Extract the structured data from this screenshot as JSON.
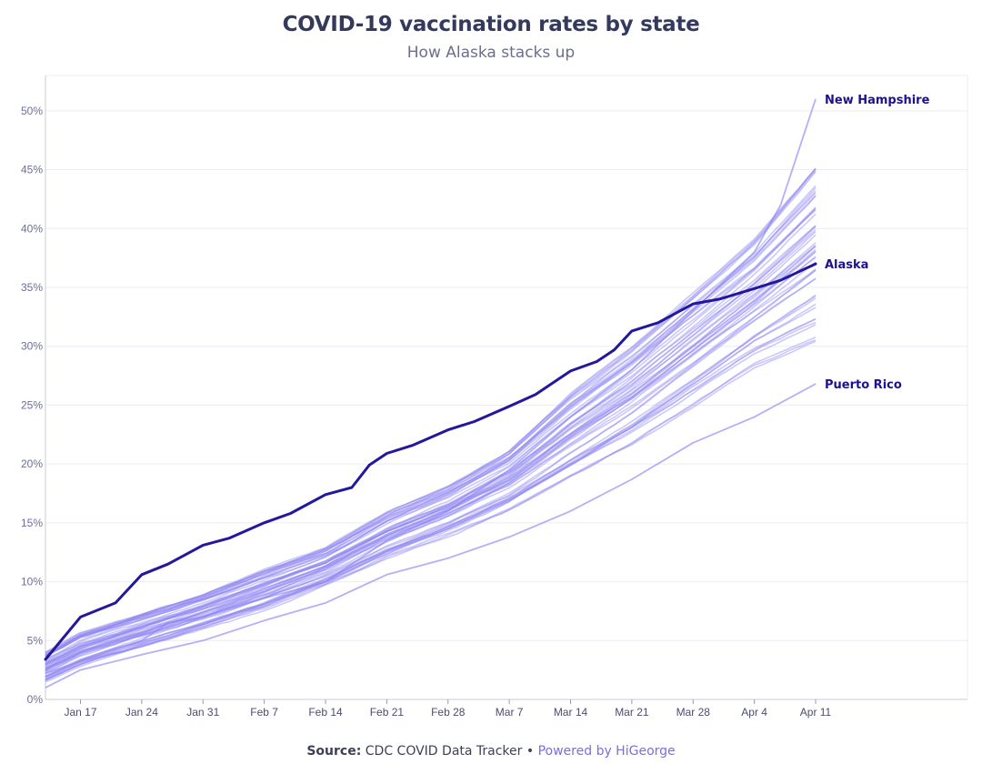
{
  "header": {
    "title": "COVID-19 vaccination rates by state",
    "subtitle": "How Alaska stacks up"
  },
  "footer": {
    "source_label": "Source:",
    "source_text": "CDC COVID Data Tracker",
    "separator": "•",
    "powered_by": "Powered by HiGeorge"
  },
  "colors": {
    "highlight": "#22179e",
    "state_lines": "#8e84f2",
    "axis_text": "#6b6e9a",
    "label_text": "#1c1290",
    "grid": "#ececf4"
  },
  "chart_data": {
    "type": "line",
    "title": "COVID-19 vaccination rates by state",
    "subtitle": "How Alaska stacks up",
    "xlabel": "",
    "ylabel": "",
    "x_ticks": [
      "Jan 17",
      "Jan 24",
      "Jan 31",
      "Feb 7",
      "Feb 14",
      "Feb 21",
      "Feb 28",
      "Mar 7",
      "Mar 14",
      "Mar 21",
      "Mar 28",
      "Apr 4",
      "Apr 11"
    ],
    "x_range": [
      "2021-01-13",
      "2021-04-11"
    ],
    "y_ticks": [
      "0%",
      "5%",
      "10%",
      "15%",
      "20%",
      "25%",
      "30%",
      "35%",
      "40%",
      "45%",
      "50%"
    ],
    "ylim": [
      0,
      53
    ],
    "grid": true,
    "highlighted_series": [
      {
        "name": "Alaska",
        "x": [
          "2021-01-13",
          "2021-01-17",
          "2021-01-21",
          "2021-01-24",
          "2021-01-27",
          "2021-01-31",
          "2021-02-03",
          "2021-02-07",
          "2021-02-10",
          "2021-02-14",
          "2021-02-17",
          "2021-02-19",
          "2021-02-21",
          "2021-02-24",
          "2021-02-28",
          "2021-03-03",
          "2021-03-07",
          "2021-03-10",
          "2021-03-14",
          "2021-03-17",
          "2021-03-19",
          "2021-03-21",
          "2021-03-24",
          "2021-03-28",
          "2021-03-31",
          "2021-04-04",
          "2021-04-07",
          "2021-04-11"
        ],
        "values": [
          3.4,
          7.0,
          8.2,
          10.6,
          11.5,
          13.1,
          13.7,
          15.0,
          15.8,
          17.4,
          18.0,
          19.9,
          20.9,
          21.6,
          22.9,
          23.6,
          24.9,
          25.9,
          27.9,
          28.7,
          29.7,
          31.3,
          32.0,
          33.6,
          34.0,
          34.9,
          35.6,
          37.0
        ]
      }
    ],
    "labeled_series": [
      {
        "name": "New Hampshire",
        "x": [
          "2021-01-13",
          "2021-01-20",
          "2021-01-24",
          "2021-01-27",
          "2021-01-31",
          "2021-02-07",
          "2021-02-14",
          "2021-02-21",
          "2021-02-28",
          "2021-03-07",
          "2021-03-14",
          "2021-03-21",
          "2021-03-28",
          "2021-04-04",
          "2021-04-07",
          "2021-04-11"
        ],
        "values": [
          2.2,
          4.0,
          5.0,
          6.5,
          7.0,
          8.6,
          10.0,
          13.5,
          16.0,
          19.5,
          24.0,
          28.0,
          33.0,
          38.0,
          42.0,
          51.0
        ]
      },
      {
        "name": "Puerto Rico",
        "x": [
          "2021-01-13",
          "2021-01-17",
          "2021-01-24",
          "2021-01-31",
          "2021-02-07",
          "2021-02-14",
          "2021-02-21",
          "2021-02-28",
          "2021-03-07",
          "2021-03-14",
          "2021-03-21",
          "2021-03-28",
          "2021-04-04",
          "2021-04-11"
        ],
        "values": [
          1.0,
          2.5,
          3.8,
          5.0,
          6.7,
          8.2,
          10.6,
          12.0,
          13.8,
          16.0,
          18.7,
          21.8,
          24.0,
          26.8
        ]
      }
    ],
    "other_states": {
      "count": 49,
      "x": [
        "2021-01-13",
        "2021-01-17",
        "2021-01-24",
        "2021-01-31",
        "2021-02-07",
        "2021-02-14",
        "2021-02-21",
        "2021-02-28",
        "2021-03-07",
        "2021-03-14",
        "2021-03-21",
        "2021-03-28",
        "2021-04-04",
        "2021-04-11"
      ],
      "low_values": [
        1.5,
        2.8,
        4.3,
        5.8,
        7.3,
        9.3,
        11.6,
        13.5,
        15.7,
        18.4,
        21.2,
        24.5,
        27.8,
        30.0
      ],
      "high_values": [
        4.0,
        5.6,
        7.2,
        8.8,
        10.8,
        12.6,
        15.6,
        17.8,
        20.8,
        25.6,
        29.5,
        34.0,
        38.5,
        44.5
      ]
    }
  }
}
